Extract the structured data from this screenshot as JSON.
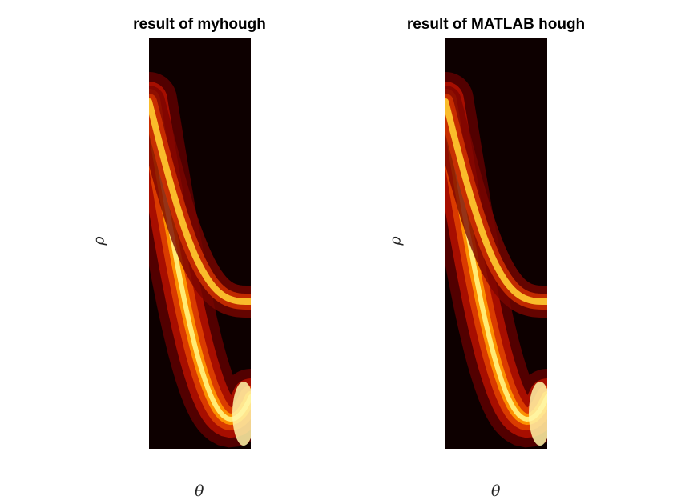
{
  "figure": {
    "background": "#ffffff",
    "colormap": "hot"
  },
  "chart_data": [
    {
      "type": "heatmap",
      "title": "result of myhough",
      "xlabel": "θ",
      "ylabel": "ρ",
      "colormap": "hot",
      "ticks_shown": false,
      "band_features": {
        "max_intensity_rho_fraction": 0.85,
        "upper_branch_start_rho_fraction": 0.15,
        "lower_branch_minimum_rho_fraction": 0.98
      }
    },
    {
      "type": "heatmap",
      "title": "result of MATLAB hough",
      "xlabel": "θ",
      "ylabel": "ρ",
      "colormap": "hot",
      "ticks_shown": false,
      "band_features": {
        "max_intensity_rho_fraction": 0.85,
        "upper_branch_start_rho_fraction": 0.15,
        "lower_branch_minimum_rho_fraction": 0.98
      }
    }
  ]
}
